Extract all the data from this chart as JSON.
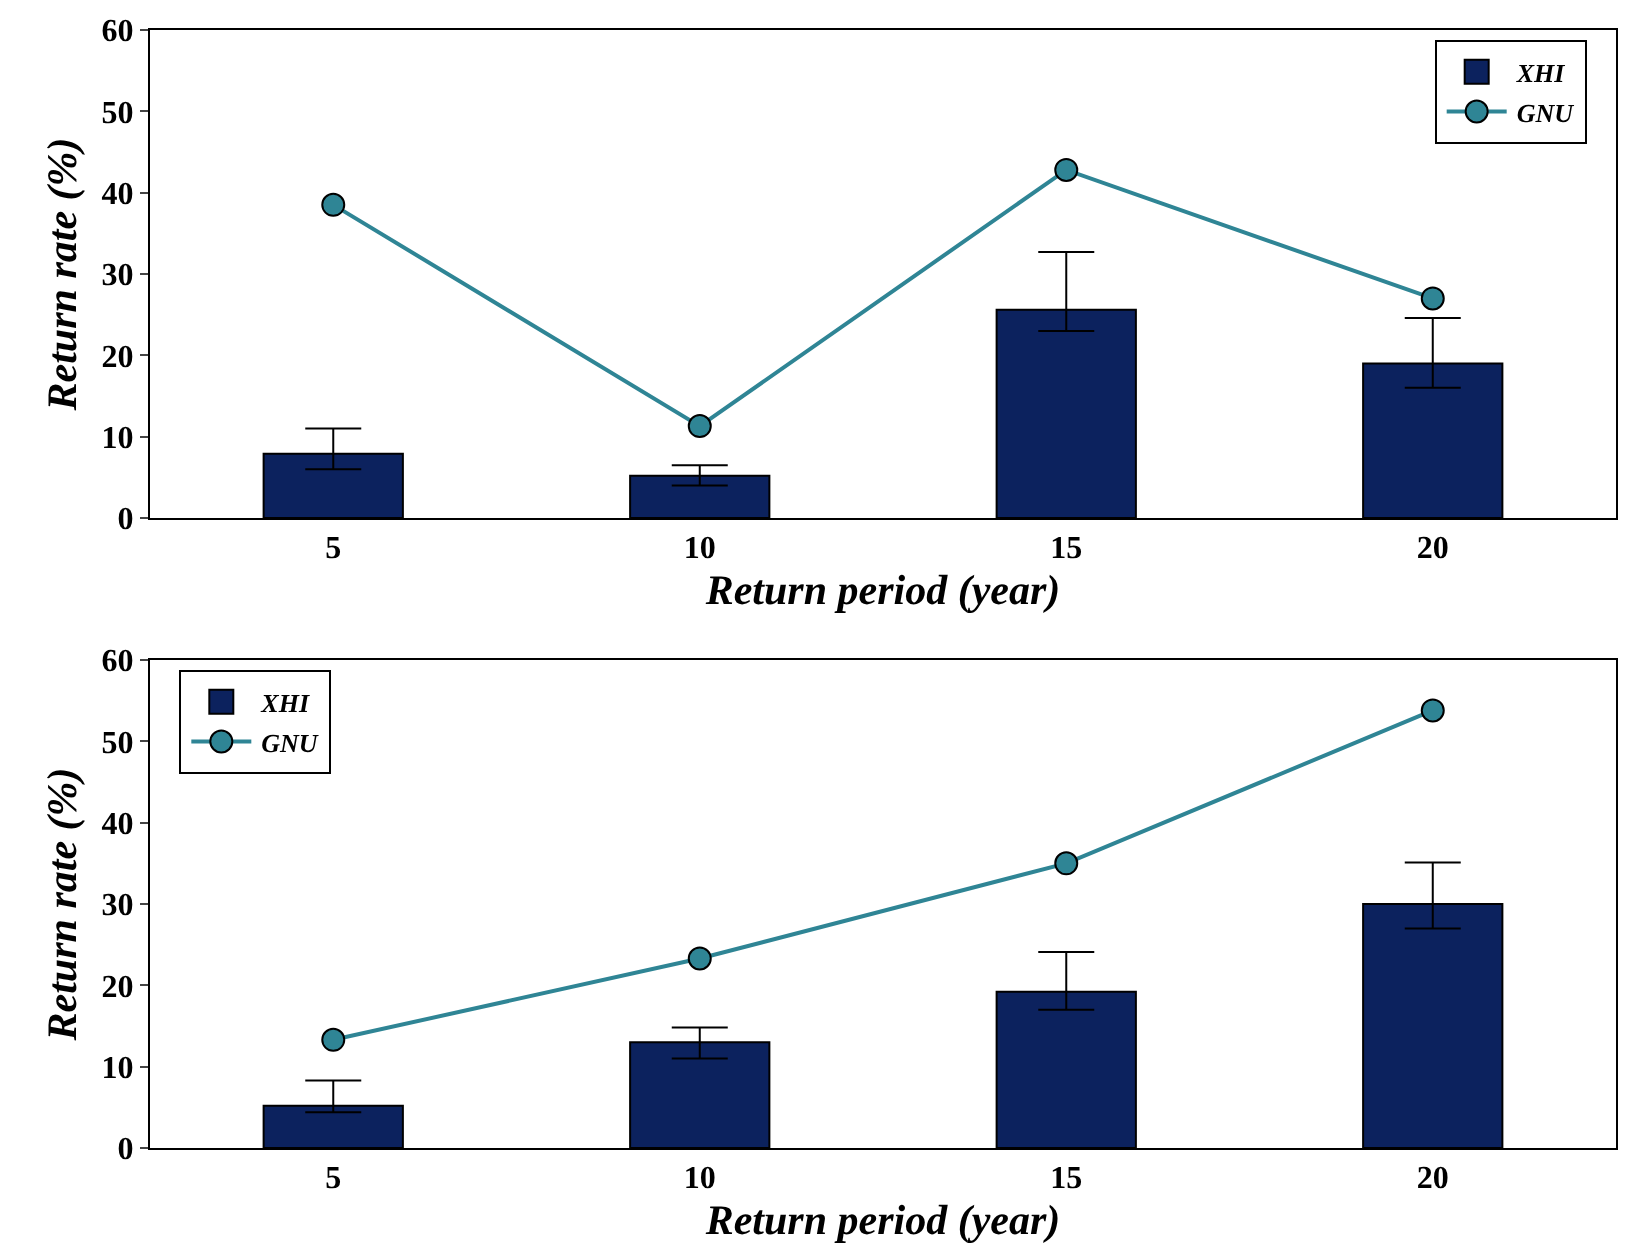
{
  "chart_data": [
    {
      "type": "bar",
      "categories": [
        "5",
        "10",
        "15",
        "20"
      ],
      "xlabel": "Return period (year)",
      "ylabel": "Return rate (%)",
      "ylim": [
        0,
        60
      ],
      "yticks": [
        0,
        10,
        20,
        30,
        40,
        50,
        60
      ],
      "grid": false,
      "legend": "top right",
      "marker": "circle",
      "line_style": "solid",
      "series": [
        {
          "name": "XHI",
          "color": "#0c225e",
          "values": [
            7.9,
            5.2,
            25.6,
            19
          ],
          "errors": [
            [
              6,
              11
            ],
            [
              4,
              6.5
            ],
            [
              23,
              32.7
            ],
            [
              16,
              24.6
            ]
          ]
        },
        {
          "name": "GNU",
          "type": "line",
          "color": "#2f8595",
          "values": [
            38.5,
            11.3,
            42.8,
            27
          ]
        }
      ]
    },
    {
      "type": "bar",
      "categories": [
        "5",
        "10",
        "15",
        "20"
      ],
      "xlabel": "Return period (year)",
      "ylabel": "Return rate (%)",
      "ylim": [
        0,
        60
      ],
      "yticks": [
        0,
        10,
        20,
        30,
        40,
        50,
        60
      ],
      "grid": false,
      "legend": "top left",
      "marker": "circle",
      "line_style": "solid",
      "series": [
        {
          "name": "XHI",
          "color": "#0c225e",
          "values": [
            5.2,
            13,
            19.2,
            30
          ],
          "errors": [
            [
              4.4,
              8.3
            ],
            [
              11,
              14.8
            ],
            [
              17,
              24.1
            ],
            [
              27,
              35.1
            ]
          ]
        },
        {
          "name": "GNU",
          "type": "line",
          "color": "#2f8595",
          "values": [
            13.3,
            23.3,
            35,
            53.8
          ]
        }
      ]
    }
  ]
}
